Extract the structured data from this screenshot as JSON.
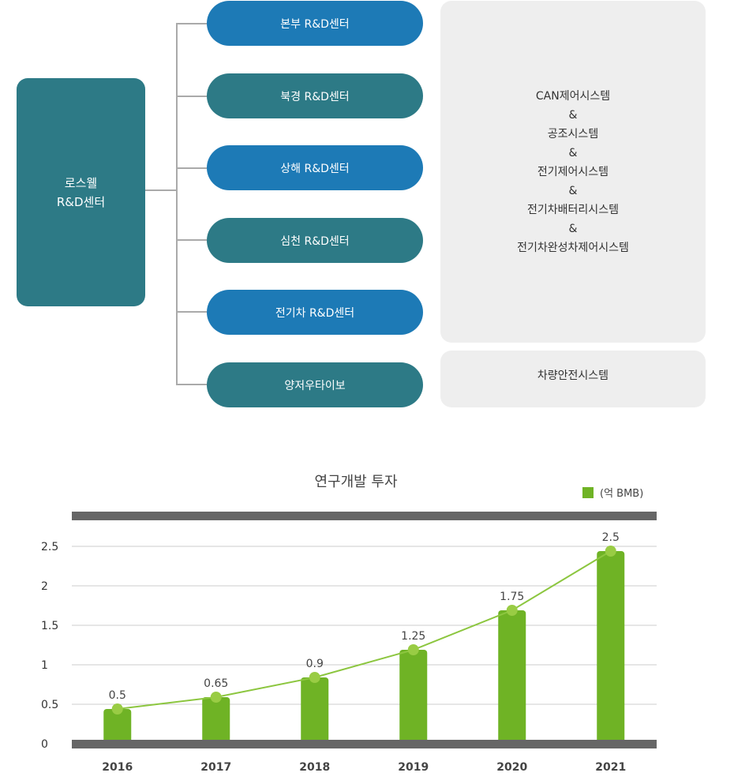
{
  "org": {
    "root": {
      "line1": "로스웰",
      "line2": "R&D센터"
    },
    "centers": [
      {
        "label": "본부 R&D센터",
        "color": "#1d7ab6"
      },
      {
        "label": "북경 R&D센터",
        "color": "#2d7a86"
      },
      {
        "label": "상해 R&D센터",
        "color": "#1d7ab6"
      },
      {
        "label": "심천 R&D센터",
        "color": "#2d7a86"
      },
      {
        "label": "전기차 R&D센터",
        "color": "#1d7ab6"
      },
      {
        "label": "양저우타이보",
        "color": "#2d7a86"
      }
    ],
    "systems": {
      "lines": [
        "CAN제어시스템",
        "&",
        "공조시스템",
        "&",
        "전기제어시스템",
        "&",
        "전기차배터리시스템",
        "&",
        "전기차완성차제어시스템"
      ]
    },
    "safety": "차량안전시스템"
  },
  "chart_data": {
    "type": "bar",
    "title": "연구개발 투자",
    "legend": "(억 BMB)",
    "categories": [
      "2016",
      "2017",
      "2018",
      "2019",
      "2020",
      "2021"
    ],
    "values": [
      0.5,
      0.65,
      0.9,
      1.25,
      1.75,
      2.5
    ],
    "value_labels": [
      "0.5",
      "0.65",
      "0.9",
      "1.25",
      "1.75",
      "2.5"
    ],
    "yticks": [
      "0",
      "0.5",
      "1",
      "1.5",
      "2",
      "2.5"
    ],
    "ylim": [
      0,
      2.5
    ],
    "overlay_line": true,
    "grid": true,
    "colors": {
      "bar": "#6fb325",
      "line": "#8cc63f",
      "marker": "#99cc44",
      "axis": "#666666"
    }
  }
}
